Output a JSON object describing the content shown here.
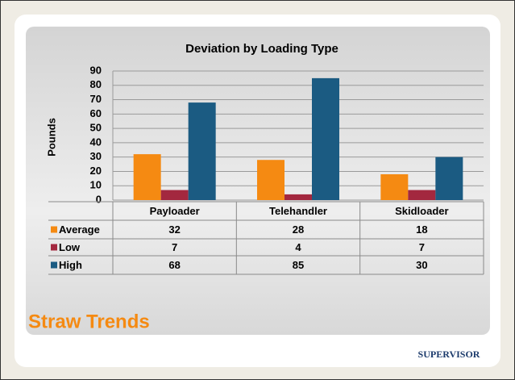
{
  "chart_data": {
    "type": "bar",
    "title": "Deviation by Loading Type",
    "y_label": "Pounds",
    "categories": [
      "Payloader",
      "Telehandler",
      "Skidloader"
    ],
    "series": [
      {
        "name": "Average",
        "color": "#f58a12",
        "values": [
          32,
          28,
          18
        ]
      },
      {
        "name": "Low",
        "color": "#a3283f",
        "values": [
          7,
          4,
          7
        ]
      },
      {
        "name": "High",
        "color": "#1b5b82",
        "values": [
          68,
          85,
          30
        ]
      }
    ],
    "ylim": [
      0,
      90
    ],
    "yticks": [
      0,
      10,
      20,
      30,
      40,
      50,
      60,
      70,
      80,
      90
    ],
    "grid": true
  },
  "slide": {
    "title": "Straw Trends",
    "logo": "SUPERVISOR"
  }
}
